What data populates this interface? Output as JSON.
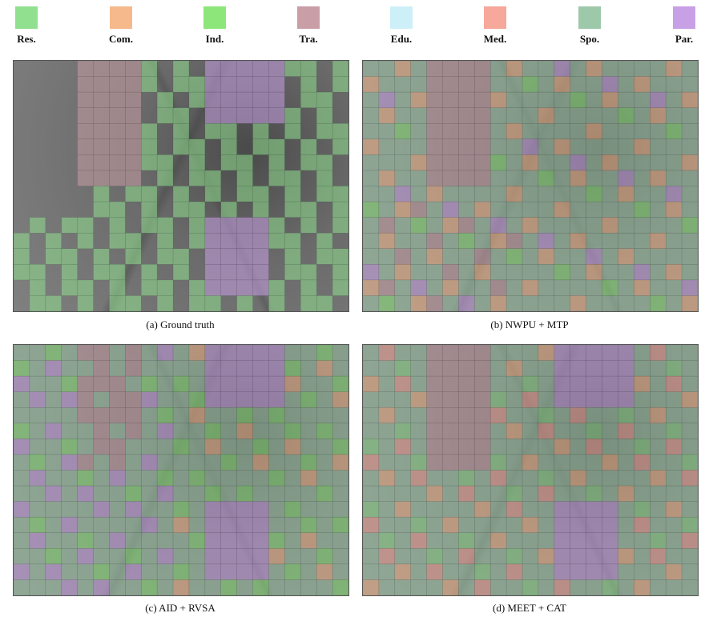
{
  "legend": [
    {
      "label": "Res.",
      "color": "#90e090"
    },
    {
      "label": "Com.",
      "color": "#f6b98c"
    },
    {
      "label": "Ind.",
      "color": "#8de67a"
    },
    {
      "label": "Tra.",
      "color": "#c99ea6"
    },
    {
      "label": "Edu.",
      "color": "#cdeff8"
    },
    {
      "label": "Med.",
      "color": "#f6a89a"
    },
    {
      "label": "Spo.",
      "color": "#9ec8aa"
    },
    {
      "label": "Par.",
      "color": "#c8a0e6"
    }
  ],
  "panels": [
    {
      "caption": "(a) Ground truth",
      "variant": "a"
    },
    {
      "caption": "(b) NWPU + MTP",
      "variant": "b"
    },
    {
      "caption": "(c) AID + RVSA",
      "variant": "c"
    },
    {
      "caption": "(d) MEET + CAT",
      "variant": "d"
    }
  ],
  "grid": {
    "cols": 21,
    "rows": 16
  }
}
